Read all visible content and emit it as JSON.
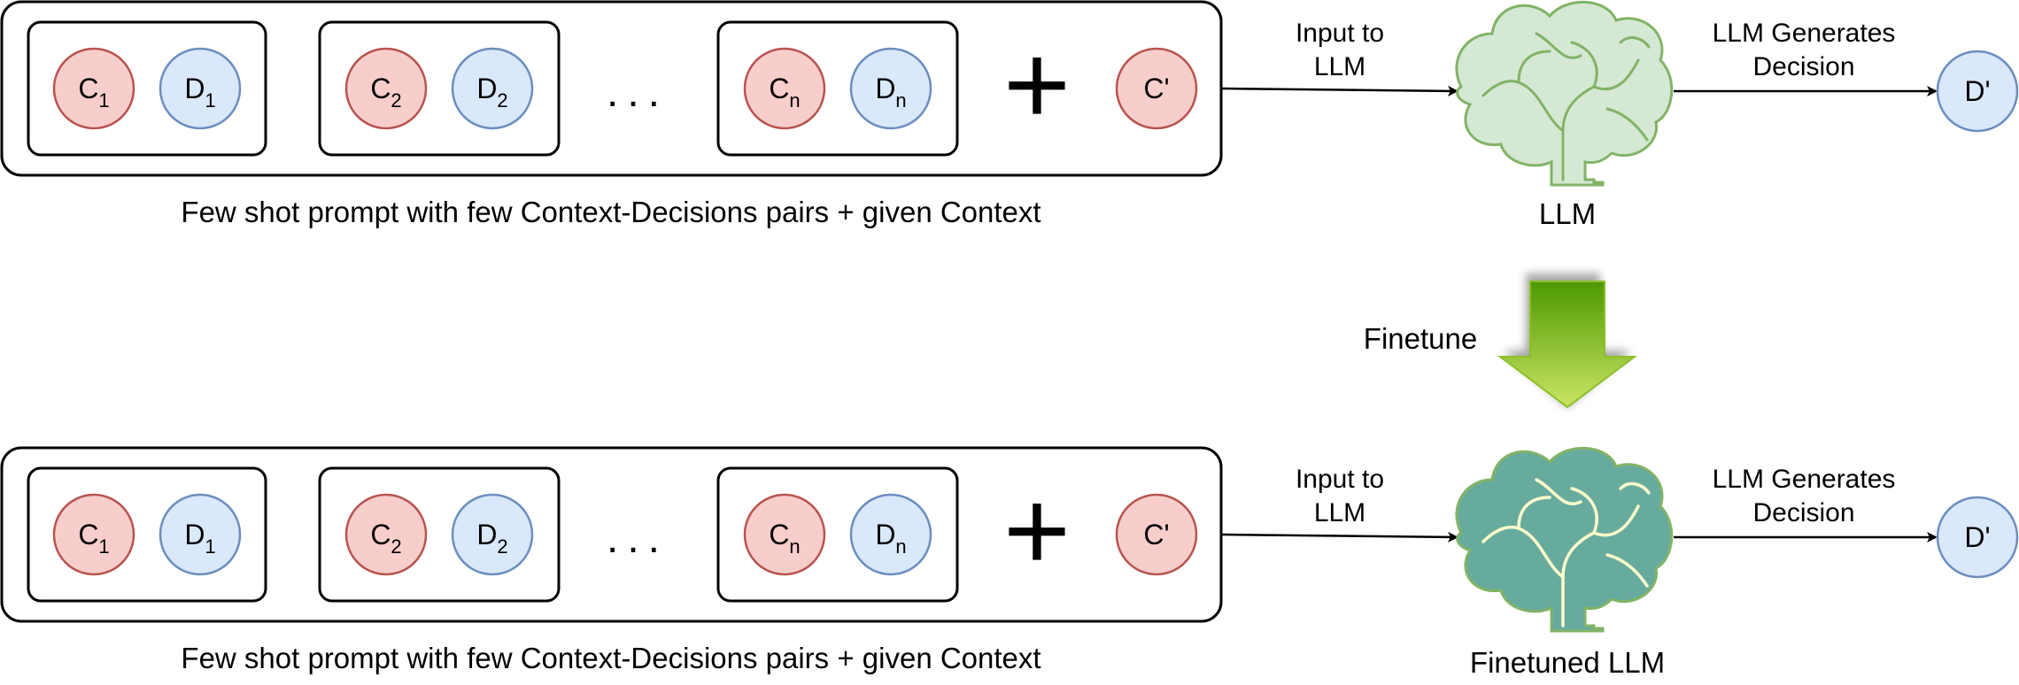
{
  "top_row": {
    "pairs": [
      {
        "context": {
          "base": "C",
          "sub": "1"
        },
        "decision": {
          "base": "D",
          "sub": "1"
        }
      },
      {
        "context": {
          "base": "C",
          "sub": "2"
        },
        "decision": {
          "base": "D",
          "sub": "2"
        }
      },
      {
        "context": {
          "base": "C",
          "sub": "n"
        },
        "decision": {
          "base": "D",
          "sub": "n"
        }
      }
    ],
    "ellipsis": "...",
    "plus": "+",
    "given_context": "C'",
    "caption": "Few shot prompt with few Context-Decisions pairs + given Context",
    "input_label_line1": "Input to",
    "input_label_line2": "LLM",
    "model_label": "LLM",
    "output_label_line1": "LLM Generates",
    "output_label_line2": "Decision",
    "output": "D'"
  },
  "finetune_label": "Finetune",
  "bottom_row": {
    "pairs": [
      {
        "context": {
          "base": "C",
          "sub": "1"
        },
        "decision": {
          "base": "D",
          "sub": "1"
        }
      },
      {
        "context": {
          "base": "C",
          "sub": "2"
        },
        "decision": {
          "base": "D",
          "sub": "2"
        }
      },
      {
        "context": {
          "base": "C",
          "sub": "n"
        },
        "decision": {
          "base": "D",
          "sub": "n"
        }
      }
    ],
    "ellipsis": "...",
    "plus": "+",
    "given_context": "C'",
    "caption": "Few shot prompt with few Context-Decisions pairs + given Context",
    "input_label_line1": "Input to",
    "input_label_line2": "LLM",
    "model_label": "Finetuned LLM",
    "output_label_line1": "LLM Generates",
    "output_label_line2": "Decision",
    "output": "D'"
  },
  "colors": {
    "context_fill": "#f8cecc",
    "context_stroke": "#b85450",
    "decision_fill": "#dae8fc",
    "decision_stroke": "#6c8ebf",
    "brain_light_fill": "#d5e8d4",
    "brain_light_stroke": "#82b366",
    "brain_dark_fill": "#67ab9f",
    "brain_dark_stroke": "#82b366",
    "arrow_top": "#4d9900",
    "arrow_bottom": "#cce566"
  }
}
